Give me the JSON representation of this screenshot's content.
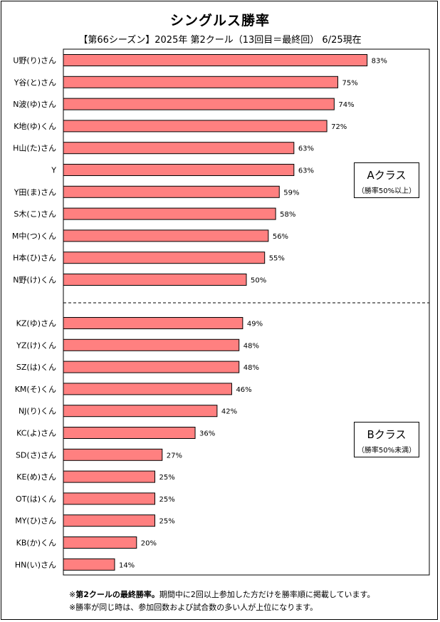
{
  "title": "シングルス勝率",
  "subtitle": "【第66シーズン】2025年 第2クール（13回目＝最終回） 6/25現在",
  "class_a": {
    "name": "Aクラス",
    "sub": "（勝率50%以上）"
  },
  "class_b": {
    "name": "Bクラス",
    "sub": "（勝率50%未満）"
  },
  "notes": {
    "line1_prefix": "※",
    "line1_bold": "第2クールの最終勝率。",
    "line1_rest": "期間中に2回以上参加した方だけを勝率順に掲載しています。",
    "line2": "※勝率が同じ時は、参加回数および試合数の多い人が上位になります。"
  },
  "chart_data": {
    "type": "bar",
    "orientation": "horizontal",
    "title": "シングルス勝率",
    "unit": "%",
    "xlim": [
      0,
      100
    ],
    "bar_color": "#ff8080",
    "groups": [
      {
        "name": "Aクラス",
        "categories": [
          "U野(り)さん",
          "Y谷(と)さん",
          "N波(ゆ)さん",
          "K地(ゆ)くん",
          "H山(た)さん",
          "Y",
          "Y田(ま)さん",
          "S木(こ)さん",
          "M中(つ)くん",
          "H本(ひ)さん",
          "N野(け)くん"
        ],
        "values": [
          83,
          75,
          74,
          72,
          63,
          63,
          59,
          58,
          56,
          55,
          50
        ],
        "value_labels": [
          "83%",
          "75%",
          "74%",
          "72%",
          "63%",
          "63%",
          "59%",
          "58%",
          "56%",
          "55%",
          "50%"
        ]
      },
      {
        "name": "Bクラス",
        "categories": [
          "KZ(ゆ)さん",
          "YZ(け)くん",
          "SZ(は)くん",
          "KM(そ)くん",
          "NJ(り)くん",
          "KC(よ)さん",
          "SD(さ)さん",
          "KE(め)さん",
          "OT(は)くん",
          "MY(ひ)さん",
          "KB(か)くん",
          "HN(い)さん"
        ],
        "values": [
          49,
          48,
          48,
          46,
          42,
          36,
          27,
          25,
          25,
          25,
          20,
          14
        ],
        "value_labels": [
          "49%",
          "48%",
          "48%",
          "46%",
          "42%",
          "36%",
          "27%",
          "25%",
          "25%",
          "25%",
          "20%",
          "14%"
        ]
      }
    ]
  }
}
